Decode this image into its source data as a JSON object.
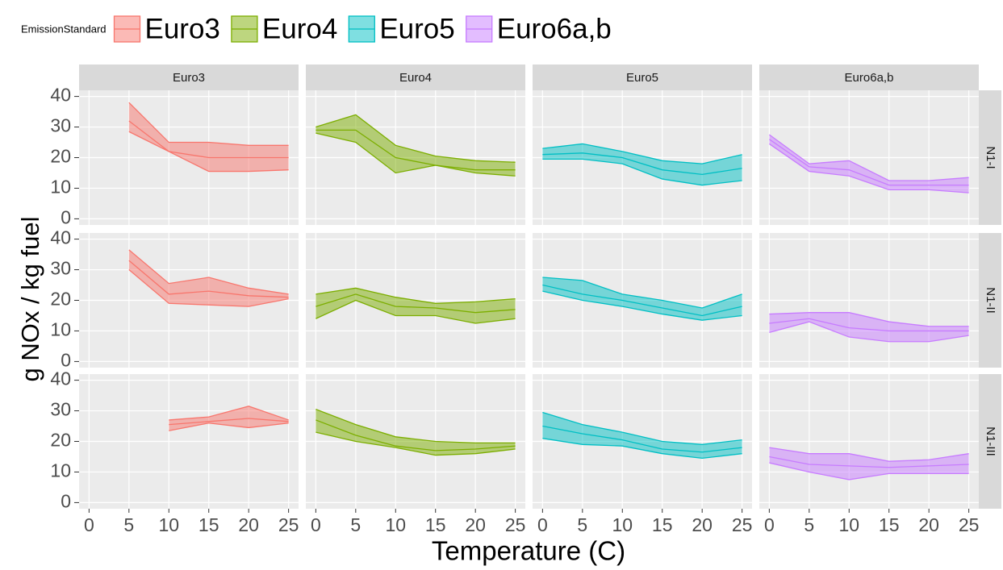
{
  "chart_data": {
    "type": "ribbon",
    "legend_title": "EmissionStandard",
    "x_label": "Temperature (C)",
    "y_label": "g NOx / kg fuel",
    "xlim": [
      -1.25,
      26.25
    ],
    "xticks": [
      0,
      5,
      10,
      15,
      20,
      25
    ],
    "ylim": [
      -2,
      42
    ],
    "yticks": [
      0,
      10,
      20,
      30,
      40
    ],
    "grid": true,
    "legend": "top",
    "series": [
      {
        "name": "Euro3",
        "color": "#F8766D"
      },
      {
        "name": "Euro4",
        "color": "#7CAE00"
      },
      {
        "name": "Euro5",
        "color": "#00BFC4"
      },
      {
        "name": "Euro6a,b",
        "color": "#C77CFF"
      }
    ],
    "rows": [
      {
        "name": "N1-I",
        "panels": [
          {
            "x": [
              5,
              10,
              15,
              20,
              25
            ],
            "mean": [
              32,
              22,
              20,
              20,
              20
            ],
            "upper": [
              38,
              25,
              25,
              24,
              24
            ],
            "lower": [
              28.5,
              22,
              15.5,
              15.5,
              16
            ]
          },
          {
            "x": [
              0,
              5,
              10,
              15,
              20,
              25
            ],
            "mean": [
              29,
              29,
              20,
              17.5,
              16,
              16
            ],
            "upper": [
              30,
              34,
              24,
              20.5,
              19,
              18.5
            ],
            "lower": [
              28,
              25,
              15,
              17.5,
              15,
              14
            ]
          },
          {
            "x": [
              0,
              5,
              10,
              15,
              20,
              25
            ],
            "mean": [
              21,
              21.5,
              20,
              16,
              14.5,
              16.5
            ],
            "upper": [
              23,
              24.5,
              22,
              19,
              18,
              21
            ],
            "lower": [
              19.5,
              19.5,
              18,
              13,
              11,
              12.5
            ]
          },
          {
            "x": [
              0,
              5,
              10,
              15,
              20,
              25
            ],
            "mean": [
              26,
              17,
              16,
              11,
              11,
              11
            ],
            "upper": [
              27.5,
              18,
              19,
              12.5,
              12.5,
              13.5
            ],
            "lower": [
              24.5,
              15.5,
              14,
              9.5,
              9.5,
              8.5
            ]
          }
        ]
      },
      {
        "name": "N1-II",
        "panels": [
          {
            "x": [
              5,
              10,
              15,
              20,
              25
            ],
            "mean": [
              33,
              22,
              23,
              21.5,
              21
            ],
            "upper": [
              36.5,
              25.5,
              27.5,
              24,
              22
            ],
            "lower": [
              30,
              19,
              18.5,
              18,
              20.5
            ]
          },
          {
            "x": [
              0,
              5,
              10,
              15,
              20,
              25
            ],
            "mean": [
              18,
              22,
              18,
              17.5,
              16,
              17
            ],
            "upper": [
              22,
              24,
              21,
              19,
              19.5,
              20.5
            ],
            "lower": [
              14,
              20,
              15,
              15,
              12.5,
              14
            ]
          },
          {
            "x": [
              0,
              5,
              10,
              15,
              20,
              25
            ],
            "mean": [
              25,
              22,
              20,
              17.5,
              15,
              18
            ],
            "upper": [
              27.5,
              26.5,
              22,
              20,
              17.5,
              22
            ],
            "lower": [
              23,
              20,
              18,
              15.5,
              13.5,
              15
            ]
          },
          {
            "x": [
              0,
              5,
              10,
              15,
              20,
              25
            ],
            "mean": [
              12.5,
              14,
              11,
              10,
              10,
              10
            ],
            "upper": [
              15.5,
              16,
              16,
              13,
              11.5,
              11.5
            ],
            "lower": [
              9.5,
              13,
              8,
              6.5,
              6.5,
              8.5
            ]
          }
        ]
      },
      {
        "name": "N1-III",
        "panels": [
          {
            "x": [
              10,
              15,
              20,
              25
            ],
            "mean": [
              25.5,
              26.5,
              27.5,
              26.5
            ],
            "upper": [
              27,
              28,
              31.5,
              27
            ],
            "lower": [
              23.5,
              26,
              24.5,
              26
            ]
          },
          {
            "x": [
              0,
              5,
              10,
              15,
              20,
              25
            ],
            "mean": [
              27,
              22,
              18.5,
              17,
              17.5,
              18.5
            ],
            "upper": [
              30.5,
              25.5,
              21.5,
              20,
              19.5,
              19.5
            ],
            "lower": [
              23,
              20,
              18,
              15.5,
              16,
              17.5
            ]
          },
          {
            "x": [
              0,
              5,
              10,
              15,
              20,
              25
            ],
            "mean": [
              25,
              22.5,
              20.5,
              17.5,
              16.5,
              18
            ],
            "upper": [
              29.5,
              25.5,
              23,
              20,
              19,
              20.5
            ],
            "lower": [
              21,
              19,
              18.5,
              16,
              14.5,
              16
            ]
          },
          {
            "x": [
              0,
              5,
              10,
              15,
              20,
              25
            ],
            "mean": [
              15,
              12.5,
              12,
              11.5,
              12,
              12.5
            ],
            "upper": [
              18,
              16,
              16,
              13.5,
              14,
              16
            ],
            "lower": [
              13,
              10,
              7.5,
              9.5,
              9.5,
              9.5
            ]
          }
        ]
      }
    ]
  }
}
